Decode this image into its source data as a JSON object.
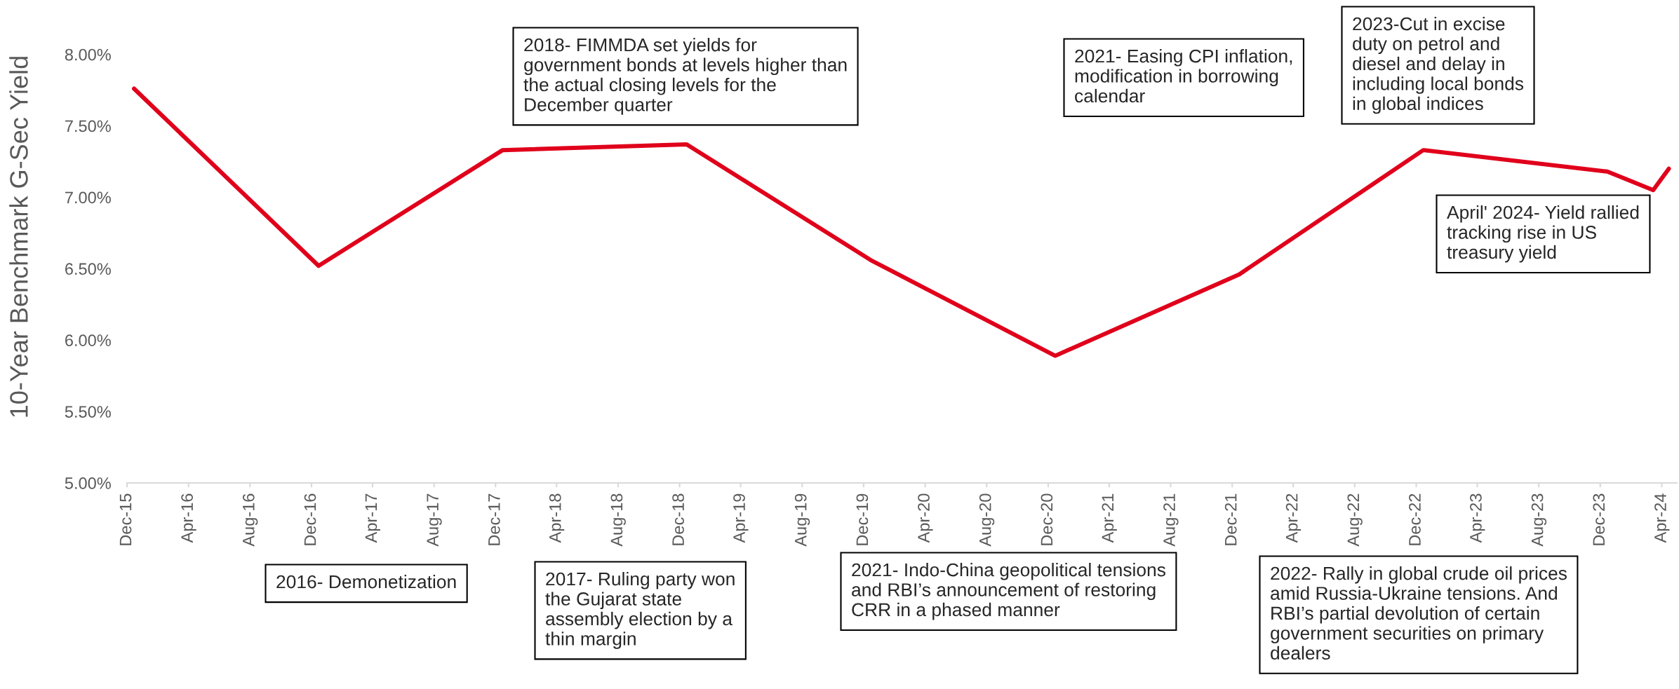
{
  "chart_data": {
    "type": "line",
    "ylabel": "10-Year Benchmark G-Sec Yield",
    "x": [
      "2015-12-15",
      "2016-12-15",
      "2017-12-15",
      "2018-12-15",
      "2019-12-15",
      "2020-12-15",
      "2021-12-15",
      "2022-12-15",
      "2023-12-15",
      "2024-03-15",
      "2024-04-15"
    ],
    "series": [
      {
        "color": "#e0001b",
        "values": [
          7.76,
          6.52,
          7.33,
          7.37,
          6.56,
          5.89,
          6.46,
          7.33,
          7.18,
          7.05,
          7.2
        ]
      }
    ],
    "xlim": [
      "2015-12-01",
      "2024-05-01"
    ],
    "xticks": [
      {
        "value": "2015-12-01",
        "label": "Dec-15"
      },
      {
        "value": "2016-04-01",
        "label": "Apr-16"
      },
      {
        "value": "2016-08-01",
        "label": "Aug-16"
      },
      {
        "value": "2016-12-01",
        "label": "Dec-16"
      },
      {
        "value": "2017-04-01",
        "label": "Apr-17"
      },
      {
        "value": "2017-08-01",
        "label": "Aug-17"
      },
      {
        "value": "2017-12-01",
        "label": "Dec-17"
      },
      {
        "value": "2018-04-01",
        "label": "Apr-18"
      },
      {
        "value": "2018-08-01",
        "label": "Aug-18"
      },
      {
        "value": "2018-12-01",
        "label": "Dec-18"
      },
      {
        "value": "2019-04-01",
        "label": "Apr-19"
      },
      {
        "value": "2019-08-01",
        "label": "Aug-19"
      },
      {
        "value": "2019-12-01",
        "label": "Dec-19"
      },
      {
        "value": "2020-04-01",
        "label": "Apr-20"
      },
      {
        "value": "2020-08-01",
        "label": "Aug-20"
      },
      {
        "value": "2020-12-01",
        "label": "Dec-20"
      },
      {
        "value": "2021-04-01",
        "label": "Apr-21"
      },
      {
        "value": "2021-08-01",
        "label": "Aug-21"
      },
      {
        "value": "2021-12-01",
        "label": "Dec-21"
      },
      {
        "value": "2022-04-01",
        "label": "Apr-22"
      },
      {
        "value": "2022-08-01",
        "label": "Aug-22"
      },
      {
        "value": "2022-12-01",
        "label": "Dec-22"
      },
      {
        "value": "2023-04-01",
        "label": "Apr-23"
      },
      {
        "value": "2023-08-01",
        "label": "Aug-23"
      },
      {
        "value": "2023-12-01",
        "label": "Dec-23"
      },
      {
        "value": "2024-04-01",
        "label": "Apr-24"
      }
    ],
    "ylim": [
      5,
      8
    ],
    "yticks": [
      {
        "value": 5,
        "label": "5.00%"
      },
      {
        "value": 5.5,
        "label": "5.50%"
      },
      {
        "value": 6,
        "label": "6.00%"
      },
      {
        "value": 6.5,
        "label": "6.50%"
      },
      {
        "value": 7,
        "label": "7.00%"
      },
      {
        "value": 7.5,
        "label": "7.50%"
      },
      {
        "value": 8,
        "label": "8.00%"
      }
    ],
    "grid": false,
    "annotations": [
      "2018- FIMMDA set yields for\ngovernment bonds at levels higher than\nthe actual closing levels for the\nDecember quarter",
      "2021- Easing CPI inflation,\nmodification in borrowing\ncalendar",
      "2023-Cut in excise\nduty on petrol and\ndiesel and delay in\nincluding local bonds\nin global indices",
      "April' 2024- Yield rallied\ntracking rise in US\ntreasury yield",
      "2016- Demonetization",
      "2017- Ruling party won\nthe Gujarat state\nassembly election by a\nthin margin",
      "2021- Indo-China geopolitical tensions\nand RBI’s announcement of restoring\nCRR in a phased manner",
      "2022- Rally in global crude oil prices\namid Russia-Ukraine tensions. And\nRBI’s partial devolution of certain\ngovernment securities on primary\ndealers"
    ]
  }
}
